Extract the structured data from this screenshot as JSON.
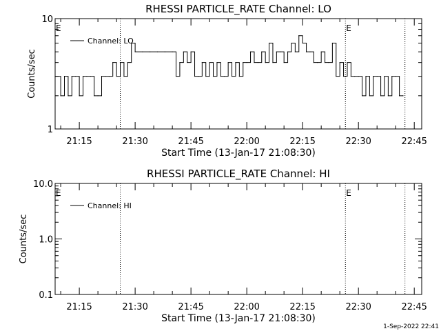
{
  "footer_date": "1-Sep-2022 22:41",
  "chart_data": [
    {
      "type": "line",
      "title": "RHESSI PARTICLE_RATE Channel: LO",
      "xlabel": "Start Time (13-Jan-17 21:08:30)",
      "ylabel": "Counts/sec",
      "y_scale": "log",
      "ylim": [
        1,
        10
      ],
      "y_ticks": [
        {
          "value": 1,
          "label": "1"
        },
        {
          "value": 10,
          "label": "10"
        }
      ],
      "xlim": [
        "21:08:30",
        "22:47:00"
      ],
      "x_ticks": [
        "21:15",
        "21:30",
        "21:45",
        "22:00",
        "22:15",
        "22:30",
        "22:45"
      ],
      "legend_position": "top-left",
      "series": [
        {
          "name": "Channel: LO",
          "x": [
            "21:08:30",
            "21:10:00",
            "21:11:00",
            "21:12:00",
            "21:13:00",
            "21:14:00",
            "21:15:00",
            "21:16:00",
            "21:17:00",
            "21:18:00",
            "21:19:00",
            "21:20:00",
            "21:21:00",
            "21:22:00",
            "21:23:00",
            "21:24:00",
            "21:25:00",
            "21:26:00",
            "21:27:00",
            "21:28:00",
            "21:29:00",
            "21:30:00",
            "21:32:00",
            "21:34:00",
            "21:36:00",
            "21:38:00",
            "21:40:00",
            "21:41:00",
            "21:42:00",
            "21:43:00",
            "21:44:00",
            "21:45:00",
            "21:46:00",
            "21:47:00",
            "21:48:00",
            "21:49:00",
            "21:50:00",
            "21:51:00",
            "21:52:00",
            "21:53:00",
            "21:54:00",
            "21:55:00",
            "21:56:00",
            "21:57:00",
            "21:58:00",
            "21:59:00",
            "22:00:00",
            "22:01:00",
            "22:02:00",
            "22:03:00",
            "22:04:00",
            "22:05:00",
            "22:06:00",
            "22:07:00",
            "22:08:00",
            "22:09:00",
            "22:10:00",
            "22:11:00",
            "22:12:00",
            "22:13:00",
            "22:14:00",
            "22:15:00",
            "22:16:00",
            "22:17:00",
            "22:18:00",
            "22:19:00",
            "22:20:00",
            "22:21:00",
            "22:22:00",
            "22:23:00",
            "22:24:00",
            "22:25:00",
            "22:26:00",
            "22:27:00",
            "22:28:00",
            "22:29:00",
            "22:30:00",
            "22:31:00",
            "22:32:00",
            "22:33:00",
            "22:34:00",
            "22:35:00",
            "22:36:00",
            "22:37:00",
            "22:38:00",
            "22:39:00",
            "22:40:00",
            "22:41:00",
            "22:42:00"
          ],
          "values": [
            3,
            2,
            3,
            2,
            3,
            3,
            2,
            3,
            3,
            3,
            2,
            2,
            3,
            3,
            3,
            4,
            3,
            4,
            3,
            4,
            6,
            5,
            5,
            5,
            5,
            5,
            5,
            3,
            4,
            5,
            4,
            5,
            3,
            3,
            4,
            3,
            4,
            3,
            4,
            3,
            3,
            4,
            3,
            4,
            3,
            4,
            4,
            5,
            4,
            4,
            5,
            4,
            6,
            4,
            5,
            5,
            4,
            5,
            6,
            5,
            7,
            6,
            5,
            5,
            4,
            4,
            5,
            4,
            4,
            6,
            3,
            4,
            3,
            4,
            3,
            3,
            3,
            2,
            3,
            2,
            3,
            3,
            2,
            3,
            2,
            3,
            3,
            2,
            2
          ]
        }
      ],
      "markers": [
        {
          "time": "21:26:00",
          "label": ""
        },
        {
          "time": "22:26:30",
          "label": "E"
        },
        {
          "time": "22:42:30",
          "label": ""
        }
      ],
      "start_flag": "E"
    },
    {
      "type": "line",
      "title": "RHESSI PARTICLE_RATE Channel: HI",
      "xlabel": "Start Time (13-Jan-17 21:08:30)",
      "ylabel": "Counts/sec",
      "y_scale": "log",
      "ylim": [
        0.1,
        10
      ],
      "y_ticks": [
        {
          "value": 0.1,
          "label": "0.1"
        },
        {
          "value": 1,
          "label": "1.0"
        },
        {
          "value": 10,
          "label": "10.0"
        }
      ],
      "xlim": [
        "21:08:30",
        "22:47:00"
      ],
      "x_ticks": [
        "21:15",
        "21:30",
        "21:45",
        "22:00",
        "22:15",
        "22:30",
        "22:45"
      ],
      "legend_position": "top-left",
      "series": [
        {
          "name": "Channel: HI",
          "x": [],
          "values": []
        }
      ],
      "markers": [
        {
          "time": "21:26:00",
          "label": ""
        },
        {
          "time": "22:26:30",
          "label": "E"
        },
        {
          "time": "22:42:30",
          "label": ""
        }
      ],
      "start_flag": "E"
    }
  ]
}
